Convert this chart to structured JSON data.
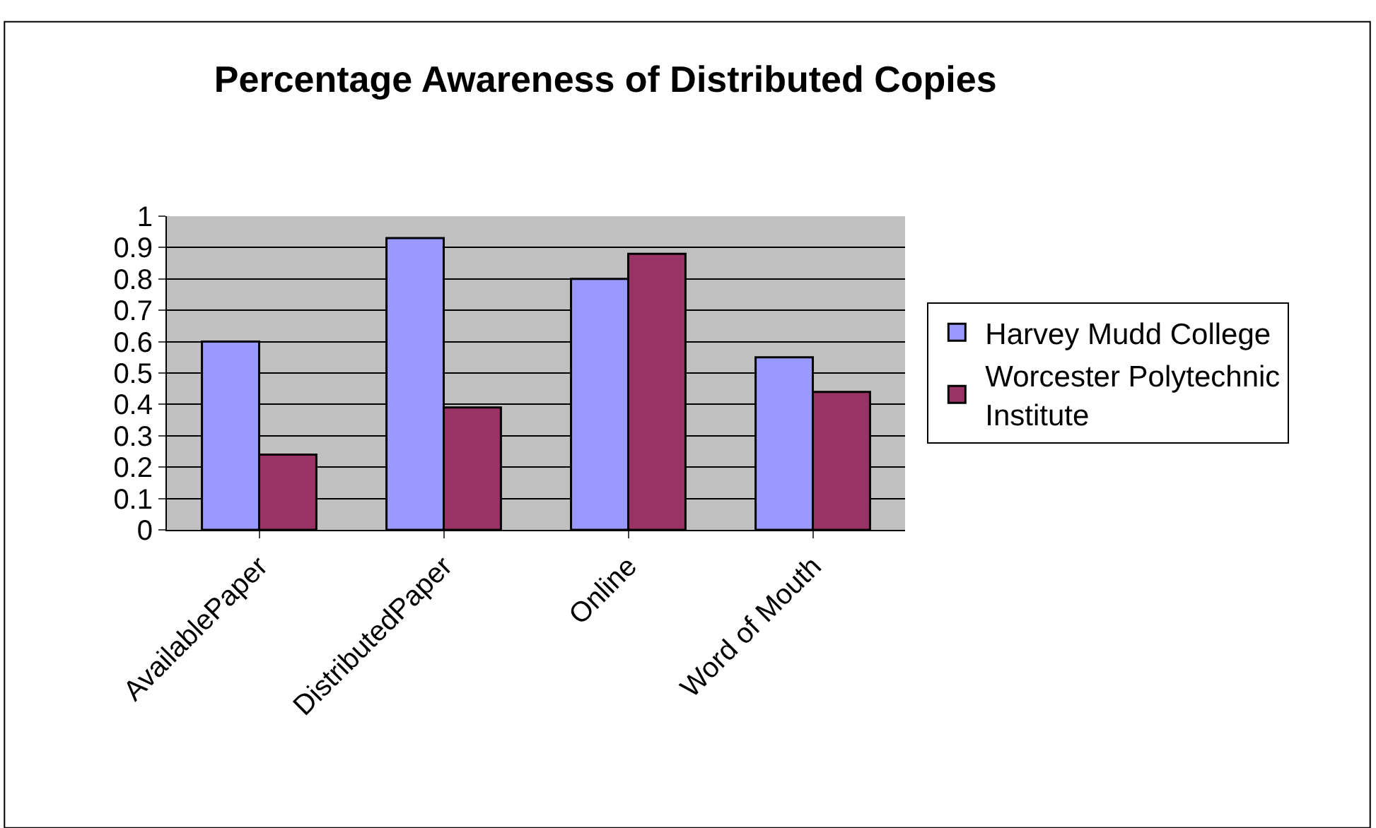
{
  "chart_data": {
    "type": "bar",
    "title": "Percentage Awareness of Distributed Copies",
    "categories": [
      "AvailablePaper",
      "DistributedPaper",
      "Online",
      "Word of Mouth"
    ],
    "series": [
      {
        "name": "Harvey Mudd College",
        "color": "#9999ff",
        "values": [
          0.6,
          0.93,
          0.8,
          0.55
        ]
      },
      {
        "name": "Worcester Polytechnic Institute",
        "color": "#993366",
        "values": [
          0.24,
          0.39,
          0.88,
          0.44
        ]
      }
    ],
    "ylim": [
      0,
      1
    ],
    "yticks": [
      0,
      0.1,
      0.2,
      0.3,
      0.4,
      0.5,
      0.6,
      0.7,
      0.8,
      0.9,
      1
    ],
    "grid": "y",
    "legend": "right"
  }
}
